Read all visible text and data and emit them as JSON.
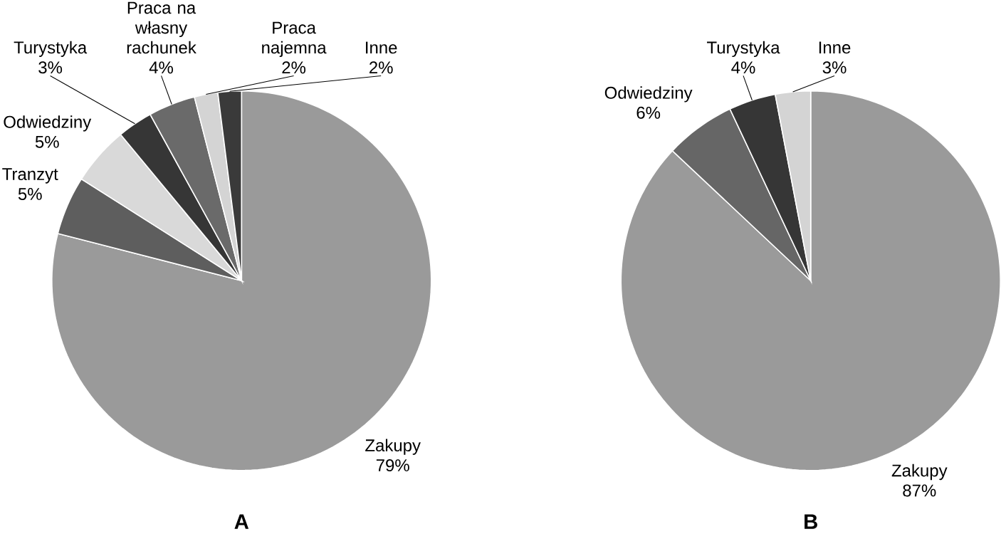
{
  "chart_data": [
    {
      "type": "pie",
      "title": "A",
      "categories": [
        "Zakupy",
        "Tranzyt",
        "Odwiedziny",
        "Turystyka",
        "Praca na własny rachunek",
        "Praca najemna",
        "Inne"
      ],
      "values": [
        79,
        5,
        5,
        3,
        4,
        2,
        2
      ],
      "value_labels": [
        "79%",
        "5%",
        "5%",
        "3%",
        "4%",
        "2%",
        "2%"
      ],
      "colors": [
        "#9a9a9a",
        "#5e5e5e",
        "#d9d9d9",
        "#363636",
        "#6a6a6a",
        "#d4d4d4",
        "#3a3a3a"
      ]
    },
    {
      "type": "pie",
      "title": "B",
      "categories": [
        "Zakupy",
        "Odwiedziny",
        "Turystyka",
        "Inne"
      ],
      "values": [
        87,
        6,
        4,
        3
      ],
      "value_labels": [
        "87%",
        "6%",
        "4%",
        "3%"
      ],
      "colors": [
        "#9a9a9a",
        "#666666",
        "#363636",
        "#d4d4d4"
      ]
    }
  ]
}
